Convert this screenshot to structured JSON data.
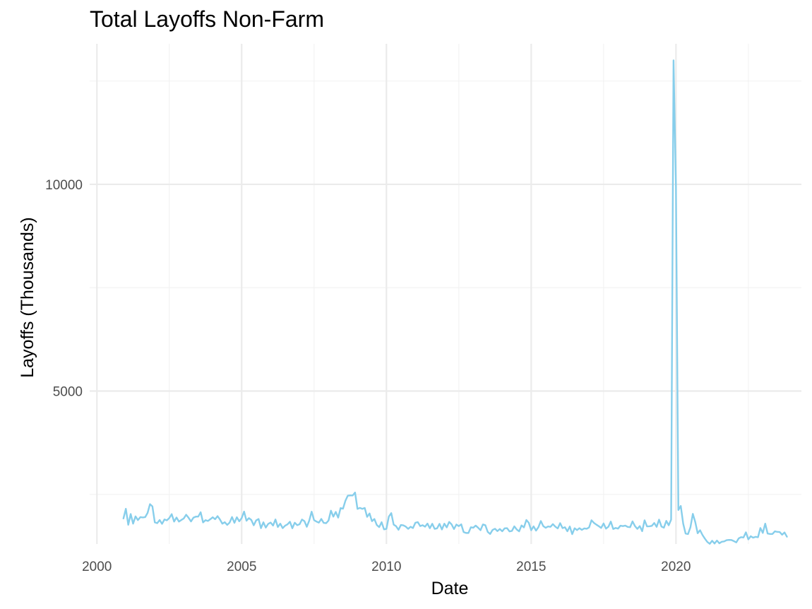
{
  "chart_data": {
    "type": "line",
    "title": "Total Layoffs Non-Farm",
    "xlabel": "Date",
    "ylabel": "Layoffs (Thousands)",
    "xlim": [
      "1999-10-01",
      "2024-05-01"
    ],
    "ylim": [
      1300,
      13400
    ],
    "x_ticks": [
      "2000",
      "2005",
      "2010",
      "2015",
      "2020"
    ],
    "y_ticks": [
      "5000",
      "10000"
    ],
    "grid": true,
    "legend": "none",
    "colors": {
      "line": "#87CEEB",
      "grid_major": "#EBEBEB",
      "grid_minor": "#F2F2F2"
    },
    "series": [
      {
        "x": [
          "2000-12",
          "2001-01",
          "2001-02",
          "2001-03",
          "2001-04",
          "2001-05",
          "2001-06",
          "2001-07",
          "2001-08",
          "2001-09",
          "2001-10",
          "2001-11",
          "2001-12",
          "2002-01",
          "2002-02",
          "2002-03",
          "2002-04",
          "2002-05",
          "2002-06",
          "2002-07",
          "2002-08",
          "2002-09",
          "2002-10",
          "2002-11",
          "2002-12",
          "2003-01",
          "2003-02",
          "2003-03",
          "2003-04",
          "2003-05",
          "2003-06",
          "2003-07",
          "2003-08",
          "2003-09",
          "2003-10",
          "2003-11",
          "2003-12",
          "2004-01",
          "2004-02",
          "2004-03",
          "2004-04",
          "2004-05",
          "2004-06",
          "2004-07",
          "2004-08",
          "2004-09",
          "2004-10",
          "2004-11",
          "2004-12",
          "2005-01",
          "2005-02",
          "2005-03",
          "2005-04",
          "2005-05",
          "2005-06",
          "2005-07",
          "2005-08",
          "2005-09",
          "2005-10",
          "2005-11",
          "2005-12",
          "2006-01",
          "2006-02",
          "2006-03",
          "2006-04",
          "2006-05",
          "2006-06",
          "2006-07",
          "2006-08",
          "2006-09",
          "2006-10",
          "2006-11",
          "2006-12",
          "2007-01",
          "2007-02",
          "2007-03",
          "2007-04",
          "2007-05",
          "2007-06",
          "2007-07",
          "2007-08",
          "2007-09",
          "2007-10",
          "2007-11",
          "2007-12",
          "2008-01",
          "2008-02",
          "2008-03",
          "2008-04",
          "2008-05",
          "2008-06",
          "2008-07",
          "2008-08",
          "2008-09",
          "2008-10",
          "2008-11",
          "2008-12",
          "2009-01",
          "2009-02",
          "2009-03",
          "2009-04",
          "2009-05",
          "2009-06",
          "2009-07",
          "2009-08",
          "2009-09",
          "2009-10",
          "2009-11",
          "2009-12",
          "2010-01",
          "2010-02",
          "2010-03",
          "2010-04",
          "2010-05",
          "2010-06",
          "2010-07",
          "2010-08",
          "2010-09",
          "2010-10",
          "2010-11",
          "2010-12",
          "2011-01",
          "2011-02",
          "2011-03",
          "2011-04",
          "2011-05",
          "2011-06",
          "2011-07",
          "2011-08",
          "2011-09",
          "2011-10",
          "2011-11",
          "2011-12",
          "2012-01",
          "2012-02",
          "2012-03",
          "2012-04",
          "2012-05",
          "2012-06",
          "2012-07",
          "2012-08",
          "2012-09",
          "2012-10",
          "2012-11",
          "2012-12",
          "2013-01",
          "2013-02",
          "2013-03",
          "2013-04",
          "2013-05",
          "2013-06",
          "2013-07",
          "2013-08",
          "2013-09",
          "2013-10",
          "2013-11",
          "2013-12",
          "2014-01",
          "2014-02",
          "2014-03",
          "2014-04",
          "2014-05",
          "2014-06",
          "2014-07",
          "2014-08",
          "2014-09",
          "2014-10",
          "2014-11",
          "2014-12",
          "2015-01",
          "2015-02",
          "2015-03",
          "2015-04",
          "2015-05",
          "2015-06",
          "2015-07",
          "2015-08",
          "2015-09",
          "2015-10",
          "2015-11",
          "2015-12",
          "2016-01",
          "2016-02",
          "2016-03",
          "2016-04",
          "2016-05",
          "2016-06",
          "2016-07",
          "2016-08",
          "2016-09",
          "2016-10",
          "2016-11",
          "2016-12",
          "2017-01",
          "2017-02",
          "2017-03",
          "2017-04",
          "2017-05",
          "2017-06",
          "2017-07",
          "2017-08",
          "2017-09",
          "2017-10",
          "2017-11",
          "2017-12",
          "2018-01",
          "2018-02",
          "2018-03",
          "2018-04",
          "2018-05",
          "2018-06",
          "2018-07",
          "2018-08",
          "2018-09",
          "2018-10",
          "2018-11",
          "2018-12",
          "2019-01",
          "2019-02",
          "2019-03",
          "2019-04",
          "2019-05",
          "2019-06",
          "2019-07",
          "2019-08",
          "2019-09",
          "2019-10",
          "2019-11",
          "2019-12",
          "2020-01",
          "2020-02",
          "2020-03",
          "2020-04",
          "2020-05",
          "2020-06",
          "2020-07",
          "2020-08",
          "2020-09",
          "2020-10",
          "2020-11",
          "2020-12",
          "2021-01",
          "2021-02",
          "2021-03",
          "2021-04",
          "2021-05",
          "2021-06",
          "2021-07",
          "2021-08",
          "2021-09",
          "2021-10",
          "2021-11",
          "2021-12",
          "2022-01",
          "2022-02",
          "2022-03",
          "2022-04",
          "2022-05",
          "2022-06",
          "2022-07",
          "2022-08",
          "2022-09",
          "2022-10",
          "2022-11",
          "2022-12",
          "2023-01",
          "2023-02",
          "2023-03",
          "2023-04",
          "2023-05",
          "2023-06",
          "2023-07",
          "2023-08",
          "2023-09",
          "2023-10",
          "2023-11"
        ],
        "values": [
          1918,
          2152,
          1765,
          2025,
          1792,
          1968,
          1878,
          1950,
          1942,
          1950,
          2052,
          2264,
          2210,
          1823,
          1804,
          1880,
          1788,
          1894,
          1872,
          1928,
          2023,
          1843,
          1940,
          1842,
          1882,
          1918,
          2008,
          1934,
          1846,
          1937,
          1962,
          1963,
          2068,
          1822,
          1877,
          1857,
          1900,
          1947,
          1900,
          1974,
          1892,
          1792,
          1827,
          1762,
          1818,
          1953,
          1812,
          1948,
          1849,
          1926,
          2084,
          1863,
          1926,
          1881,
          1753,
          1871,
          1905,
          1683,
          1825,
          1697,
          1787,
          1819,
          1746,
          1893,
          1711,
          1792,
          1684,
          1743,
          1775,
          1839,
          1681,
          1816,
          1756,
          1778,
          1892,
          1854,
          1717,
          1866,
          2082,
          1878,
          1842,
          1817,
          1906,
          1811,
          1804,
          1867,
          2106,
          1962,
          2076,
          1939,
          2169,
          2155,
          2347,
          2470,
          2475,
          2473,
          2545,
          2149,
          2173,
          2150,
          2172,
          1956,
          2039,
          1852,
          1905,
          1760,
          1708,
          1828,
          1654,
          1666,
          1964,
          2047,
          1769,
          1731,
          1644,
          1761,
          1752,
          1721,
          1667,
          1717,
          1686,
          1815,
          1829,
          1734,
          1756,
          1718,
          1794,
          1682,
          1790,
          1666,
          1680,
          1788,
          1652,
          1792,
          1702,
          1834,
          1775,
          1663,
          1771,
          1732,
          1776,
          1588,
          1567,
          1567,
          1705,
          1694,
          1745,
          1694,
          1634,
          1773,
          1754,
          1591,
          1543,
          1641,
          1669,
          1612,
          1663,
          1608,
          1679,
          1683,
          1604,
          1616,
          1727,
          1652,
          1606,
          1749,
          1701,
          1881,
          1813,
          1634,
          1728,
          1624,
          1708,
          1856,
          1734,
          1692,
          1725,
          1716,
          1781,
          1720,
          1677,
          1804,
          1684,
          1705,
          1608,
          1723,
          1538,
          1681,
          1636,
          1683,
          1642,
          1677,
          1668,
          1701,
          1874,
          1811,
          1769,
          1731,
          1689,
          1797,
          1672,
          1717,
          1842,
          1663,
          1689,
          1673,
          1743,
          1732,
          1745,
          1713,
          1706,
          1847,
          1734,
          1666,
          1733,
          1610,
          1874,
          1727,
          1729,
          1739,
          1808,
          1714,
          1890,
          1722,
          1694,
          1859,
          1753,
          1890,
          13000,
          9947,
          2122,
          2221,
          1792,
          1552,
          1540,
          1705,
          2030,
          1832,
          1560,
          1633,
          1518,
          1429,
          1350,
          1305,
          1379,
          1312,
          1383,
          1316,
          1355,
          1362,
          1393,
          1400,
          1396,
          1370,
          1339,
          1435,
          1466,
          1458,
          1583,
          1412,
          1488,
          1453,
          1474,
          1464,
          1687,
          1568,
          1792,
          1553,
          1542,
          1542,
          1606,
          1593,
          1589,
          1525,
          1579,
          1476
        ]
      }
    ]
  }
}
